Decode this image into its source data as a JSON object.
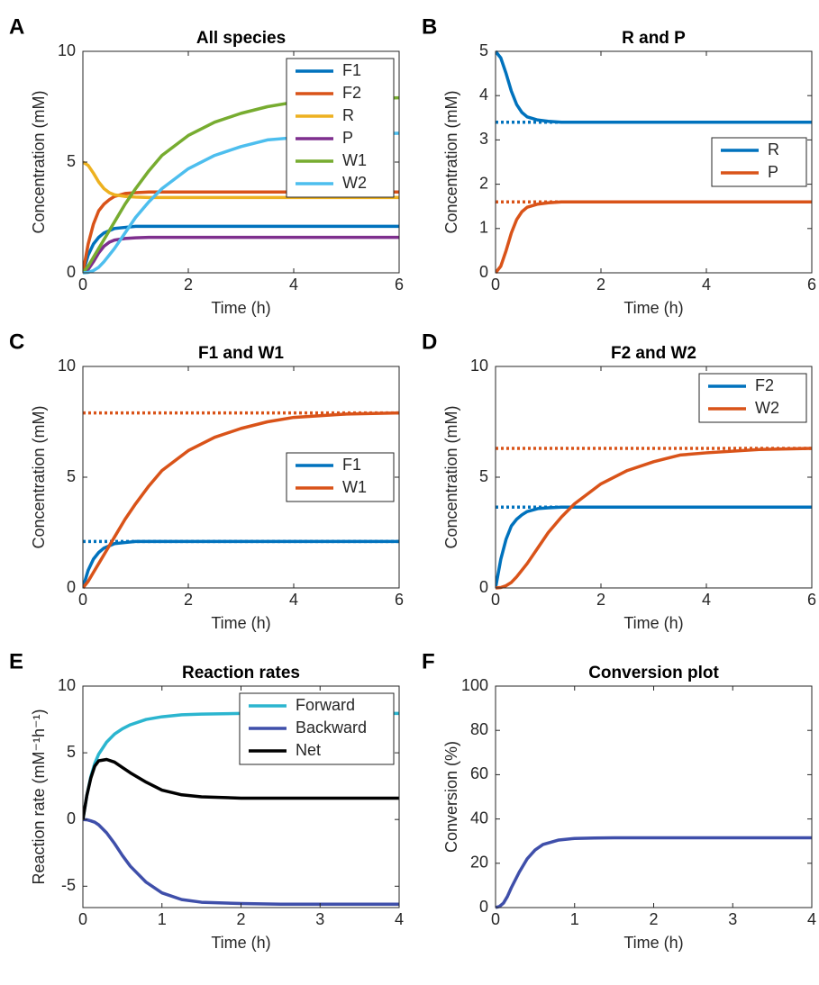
{
  "chart_data": [
    {
      "type": "line",
      "panel_label": "A",
      "title": "All species",
      "x_label": "Time (h)",
      "y_label": "Concentration (mM)",
      "x": [
        0,
        0.1,
        0.2,
        0.3,
        0.4,
        0.5,
        0.6,
        0.8,
        1,
        1.25,
        1.5,
        2,
        2.5,
        3,
        3.5,
        4,
        5,
        6
      ],
      "series": [
        {
          "name": "F1",
          "color": "#0072BD",
          "values": [
            0,
            0.8,
            1.3,
            1.6,
            1.8,
            1.9,
            2.0,
            2.05,
            2.1,
            2.1,
            2.1,
            2.1,
            2.1,
            2.1,
            2.1,
            2.1,
            2.1,
            2.1
          ]
        },
        {
          "name": "F2",
          "color": "#D95319",
          "values": [
            0,
            1.3,
            2.2,
            2.8,
            3.1,
            3.3,
            3.45,
            3.58,
            3.62,
            3.65,
            3.65,
            3.65,
            3.65,
            3.65,
            3.65,
            3.65,
            3.65,
            3.65
          ]
        },
        {
          "name": "R",
          "color": "#EDB120",
          "values": [
            5,
            4.85,
            4.5,
            4.1,
            3.8,
            3.62,
            3.52,
            3.45,
            3.42,
            3.4,
            3.4,
            3.4,
            3.4,
            3.4,
            3.4,
            3.4,
            3.4,
            3.4
          ]
        },
        {
          "name": "P",
          "color": "#7E2F8E",
          "values": [
            0,
            0.15,
            0.5,
            0.9,
            1.2,
            1.38,
            1.48,
            1.55,
            1.58,
            1.6,
            1.6,
            1.6,
            1.6,
            1.6,
            1.6,
            1.6,
            1.6,
            1.6
          ]
        },
        {
          "name": "W1",
          "color": "#77AC30",
          "values": [
            0,
            0.3,
            0.7,
            1.1,
            1.5,
            1.9,
            2.3,
            3.1,
            3.8,
            4.6,
            5.3,
            6.2,
            6.8,
            7.2,
            7.5,
            7.7,
            7.85,
            7.9
          ]
        },
        {
          "name": "W2",
          "color": "#4DBEEE",
          "values": [
            0,
            0.02,
            0.1,
            0.25,
            0.5,
            0.8,
            1.1,
            1.8,
            2.5,
            3.2,
            3.8,
            4.7,
            5.3,
            5.7,
            6.0,
            6.1,
            6.25,
            6.3
          ]
        }
      ],
      "xlim": [
        0,
        6
      ],
      "xticks": [
        0,
        2,
        4,
        6
      ],
      "ylim": [
        0,
        10
      ],
      "yticks": [
        0,
        5,
        10
      ],
      "legend": "northeast"
    },
    {
      "type": "line",
      "panel_label": "B",
      "title": "R and P",
      "x_label": "Time (h)",
      "y_label": "Concentration (mM)",
      "x": [
        0,
        0.1,
        0.2,
        0.3,
        0.4,
        0.5,
        0.6,
        0.8,
        1,
        1.25,
        1.5,
        2,
        2.5,
        3,
        3.5,
        4,
        5,
        6
      ],
      "series": [
        {
          "name": "R",
          "color": "#0072BD",
          "values": [
            5,
            4.85,
            4.5,
            4.1,
            3.8,
            3.62,
            3.52,
            3.45,
            3.42,
            3.4,
            3.4,
            3.4,
            3.4,
            3.4,
            3.4,
            3.4,
            3.4,
            3.4
          ]
        },
        {
          "name": "P",
          "color": "#D95319",
          "values": [
            0,
            0.15,
            0.5,
            0.9,
            1.2,
            1.38,
            1.48,
            1.55,
            1.58,
            1.6,
            1.6,
            1.6,
            1.6,
            1.6,
            1.6,
            1.6,
            1.6,
            1.6
          ]
        }
      ],
      "reference_lines": [
        {
          "value": 3.4,
          "color": "#0072BD"
        },
        {
          "value": 1.6,
          "color": "#D95319"
        }
      ],
      "xlim": [
        0,
        6
      ],
      "xticks": [
        0,
        2,
        4,
        6
      ],
      "ylim": [
        0,
        5
      ],
      "yticks": [
        0,
        1,
        2,
        3,
        4,
        5
      ],
      "legend": "east"
    },
    {
      "type": "line",
      "panel_label": "C",
      "title": "F1 and W1",
      "x_label": "Time (h)",
      "y_label": "Concentration (mM)",
      "x": [
        0,
        0.1,
        0.2,
        0.3,
        0.4,
        0.5,
        0.6,
        0.8,
        1,
        1.25,
        1.5,
        2,
        2.5,
        3,
        3.5,
        4,
        5,
        6
      ],
      "series": [
        {
          "name": "F1",
          "color": "#0072BD",
          "values": [
            0,
            0.8,
            1.3,
            1.6,
            1.8,
            1.9,
            2.0,
            2.05,
            2.1,
            2.1,
            2.1,
            2.1,
            2.1,
            2.1,
            2.1,
            2.1,
            2.1,
            2.1
          ]
        },
        {
          "name": "W1",
          "color": "#D95319",
          "values": [
            0,
            0.3,
            0.7,
            1.1,
            1.5,
            1.9,
            2.3,
            3.1,
            3.8,
            4.6,
            5.3,
            6.2,
            6.8,
            7.2,
            7.5,
            7.7,
            7.85,
            7.9
          ]
        }
      ],
      "reference_lines": [
        {
          "value": 2.1,
          "color": "#0072BD"
        },
        {
          "value": 7.9,
          "color": "#D95319"
        }
      ],
      "xlim": [
        0,
        6
      ],
      "xticks": [
        0,
        2,
        4,
        6
      ],
      "ylim": [
        0,
        10
      ],
      "yticks": [
        0,
        5,
        10
      ],
      "legend": "east"
    },
    {
      "type": "line",
      "panel_label": "D",
      "title": "F2 and W2",
      "x_label": "Time (h)",
      "y_label": "Concentration (mM)",
      "x": [
        0,
        0.1,
        0.2,
        0.3,
        0.4,
        0.5,
        0.6,
        0.8,
        1,
        1.25,
        1.5,
        2,
        2.5,
        3,
        3.5,
        4,
        5,
        6
      ],
      "series": [
        {
          "name": "F2",
          "color": "#0072BD",
          "values": [
            0,
            1.3,
            2.2,
            2.8,
            3.1,
            3.3,
            3.45,
            3.58,
            3.62,
            3.65,
            3.65,
            3.65,
            3.65,
            3.65,
            3.65,
            3.65,
            3.65,
            3.65
          ]
        },
        {
          "name": "W2",
          "color": "#D95319",
          "values": [
            0,
            0.02,
            0.1,
            0.25,
            0.5,
            0.8,
            1.1,
            1.8,
            2.5,
            3.2,
            3.8,
            4.7,
            5.3,
            5.7,
            6.0,
            6.1,
            6.25,
            6.3
          ]
        }
      ],
      "reference_lines": [
        {
          "value": 3.65,
          "color": "#0072BD"
        },
        {
          "value": 6.3,
          "color": "#D95319"
        }
      ],
      "xlim": [
        0,
        6
      ],
      "xticks": [
        0,
        2,
        4,
        6
      ],
      "ylim": [
        0,
        10
      ],
      "yticks": [
        0,
        5,
        10
      ],
      "legend": "northeast"
    },
    {
      "type": "line",
      "panel_label": "E",
      "title": "Reaction rates",
      "x_label": "Time (h)",
      "y_label": "Reaction rate (mM⁻¹h⁻¹)",
      "x": [
        0,
        0.05,
        0.1,
        0.15,
        0.2,
        0.3,
        0.4,
        0.5,
        0.6,
        0.8,
        1,
        1.25,
        1.5,
        2,
        2.5,
        3,
        3.5,
        4
      ],
      "series": [
        {
          "name": "Forward",
          "color": "#2BB5CF",
          "values": [
            0,
            1.8,
            3.2,
            4.2,
            4.9,
            5.8,
            6.4,
            6.8,
            7.1,
            7.5,
            7.7,
            7.85,
            7.9,
            7.95,
            7.95,
            7.95,
            7.95,
            7.95
          ]
        },
        {
          "name": "Backward",
          "color": "#3F4FAA",
          "values": [
            0,
            -0.02,
            -0.1,
            -0.2,
            -0.4,
            -1.0,
            -1.8,
            -2.7,
            -3.5,
            -4.7,
            -5.5,
            -6.0,
            -6.2,
            -6.3,
            -6.35,
            -6.35,
            -6.35,
            -6.35
          ]
        },
        {
          "name": "Net",
          "color": "#000000",
          "values": [
            0,
            1.8,
            3.1,
            4.0,
            4.4,
            4.5,
            4.3,
            3.9,
            3.5,
            2.8,
            2.2,
            1.85,
            1.7,
            1.6,
            1.6,
            1.6,
            1.6,
            1.6
          ]
        }
      ],
      "xlim": [
        0,
        4
      ],
      "xticks": [
        0,
        1,
        2,
        3,
        4
      ],
      "ylim": [
        -6.6,
        10
      ],
      "yticks": [
        -5,
        0,
        5,
        10
      ],
      "legend": "northeast"
    },
    {
      "type": "line",
      "panel_label": "F",
      "title": "Conversion plot",
      "x_label": "Time (h)",
      "y_label": "Conversion (%)",
      "x": [
        0,
        0.05,
        0.1,
        0.15,
        0.2,
        0.3,
        0.4,
        0.5,
        0.6,
        0.8,
        1,
        1.25,
        1.5,
        2,
        2.5,
        3,
        3.5,
        4
      ],
      "series": [
        {
          "color": "#3F4FAA",
          "values": [
            0,
            0.5,
            2,
            5,
            9,
            16,
            22,
            26,
            28.5,
            30.5,
            31.2,
            31.4,
            31.5,
            31.5,
            31.5,
            31.5,
            31.5,
            31.5
          ]
        }
      ],
      "xlim": [
        0,
        4
      ],
      "xticks": [
        0,
        1,
        2,
        3,
        4
      ],
      "ylim": [
        0,
        100
      ],
      "yticks": [
        0,
        20,
        40,
        60,
        80,
        100
      ]
    }
  ]
}
